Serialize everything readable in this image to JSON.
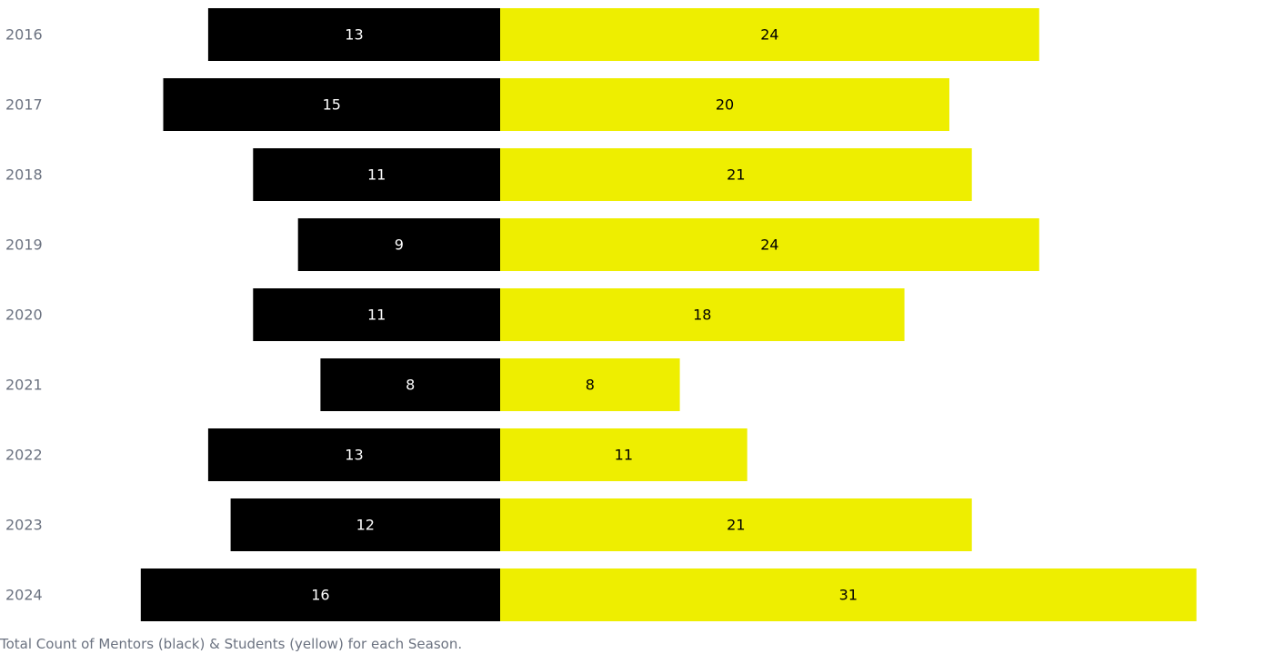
{
  "chart_data": {
    "type": "bar",
    "orientation": "horizontal-diverging",
    "categories": [
      "2016",
      "2017",
      "2018",
      "2019",
      "2020",
      "2021",
      "2022",
      "2023",
      "2024"
    ],
    "series": [
      {
        "name": "Mentors",
        "color": "#000000",
        "label_color": "#ffffff",
        "direction": "left",
        "values": [
          13,
          15,
          11,
          9,
          11,
          8,
          13,
          12,
          16
        ]
      },
      {
        "name": "Students",
        "color": "#eeee00",
        "label_color": "#000000",
        "direction": "right",
        "values": [
          24,
          20,
          21,
          24,
          18,
          8,
          11,
          21,
          31
        ]
      }
    ],
    "caption": "Total Count of Mentors (black) & Students (yellow) for each Season.",
    "grid": false,
    "legend": "none"
  }
}
